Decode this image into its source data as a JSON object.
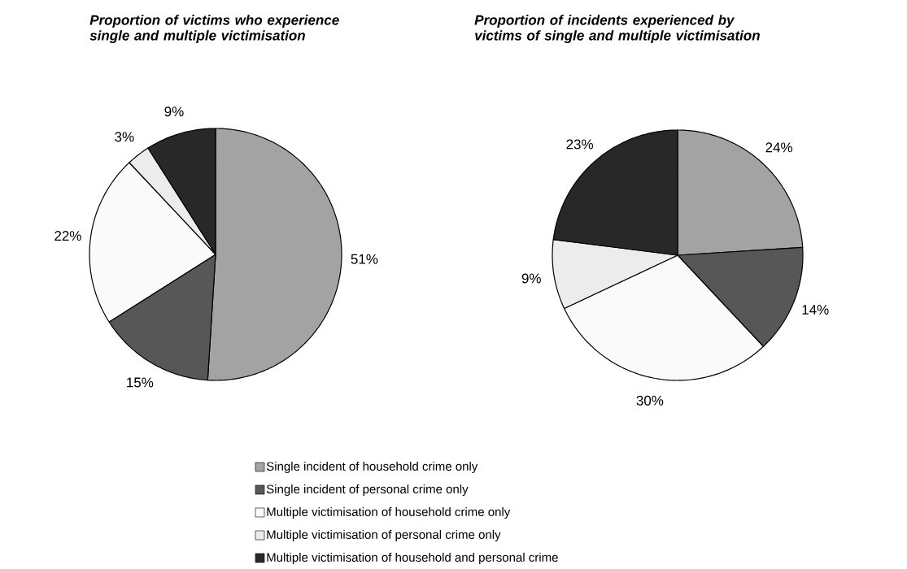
{
  "chart_data": [
    {
      "type": "pie",
      "title": "Proportion of victims who experience single and multiple victimisation",
      "categories": [
        "Single incident of household crime only",
        "Single incident of personal crime only",
        "Multiple victimisation of household crime only",
        "Multiple victimisation of personal crime only",
        "Multiple victimisation of household and personal crime"
      ],
      "values": [
        51,
        15,
        22,
        3,
        9
      ],
      "value_labels": [
        "51%",
        "15%",
        "22%",
        "3%",
        "9%"
      ],
      "colors": [
        "#a3a3a3",
        "#575757",
        "#fafafa",
        "#ececec",
        "#282828"
      ],
      "legend": "bottom"
    },
    {
      "type": "pie",
      "title": "Proportion of incidents experienced by victims of single and multiple victimisation",
      "categories": [
        null,
        null,
        null,
        null,
        null
      ],
      "values": [
        24,
        14,
        30,
        9,
        23
      ],
      "value_labels": [
        "24%",
        "14%",
        "30%",
        "9%",
        "23%"
      ],
      "colors": [
        "#a3a3a3",
        "#575757",
        "#fafafa",
        "#ececec",
        "#282828"
      ]
    }
  ]
}
